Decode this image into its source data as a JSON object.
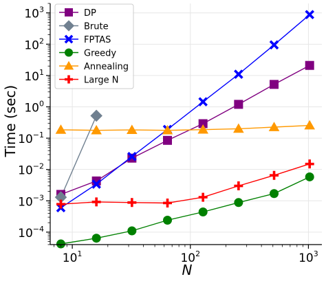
{
  "chart_data": {
    "type": "line",
    "xscale": "log",
    "yscale": "log",
    "xlim": [
      6.5,
      1300
    ],
    "ylim": [
      4e-05,
      2000
    ],
    "xlabel": "N",
    "ylabel": "Time (sec)",
    "grid": true,
    "legend_position": "upper-left",
    "xticks": [
      {
        "base": "10",
        "exp": "1",
        "value": 10
      },
      {
        "base": "10",
        "exp": "2",
        "value": 100
      },
      {
        "base": "10",
        "exp": "3",
        "value": 1000
      }
    ],
    "yticks": [
      {
        "base": "10",
        "exp": "−4",
        "value": 0.0001
      },
      {
        "base": "10",
        "exp": "−3",
        "value": 0.001
      },
      {
        "base": "10",
        "exp": "−2",
        "value": 0.01
      },
      {
        "base": "10",
        "exp": "−1",
        "value": 0.1
      },
      {
        "base": "10",
        "exp": "0",
        "value": 1
      },
      {
        "base": "10",
        "exp": "1",
        "value": 10
      },
      {
        "base": "10",
        "exp": "2",
        "value": 100
      },
      {
        "base": "10",
        "exp": "3",
        "value": 1000
      }
    ],
    "series": [
      {
        "name": "DP",
        "color": "#800080",
        "marker": "square",
        "x": [
          8,
          16,
          32,
          64,
          128,
          256,
          512,
          1024
        ],
        "y": [
          0.0016,
          0.0043,
          0.023,
          0.085,
          0.29,
          1.2,
          5.2,
          21
        ]
      },
      {
        "name": "Brute",
        "color": "#708090",
        "marker": "diamond",
        "x": [
          8,
          16
        ],
        "y": [
          0.0013,
          0.52
        ]
      },
      {
        "name": "FPTAS",
        "color": "#0000ff",
        "marker": "x",
        "x": [
          8,
          16,
          32,
          64,
          128,
          256,
          512,
          1024
        ],
        "y": [
          0.0006,
          0.0034,
          0.026,
          0.19,
          1.45,
          11,
          95,
          880
        ]
      },
      {
        "name": "Greedy",
        "color": "#008000",
        "marker": "circle",
        "x": [
          8,
          16,
          32,
          64,
          128,
          256,
          512,
          1024
        ],
        "y": [
          4.2e-05,
          6.4e-05,
          0.00011,
          0.00024,
          0.00044,
          0.00088,
          0.0017,
          0.0058
        ]
      },
      {
        "name": "Annealing",
        "color": "#ff9900",
        "marker": "triangle",
        "x": [
          8,
          16,
          32,
          64,
          128,
          256,
          512,
          1024
        ],
        "y": [
          0.185,
          0.178,
          0.183,
          0.178,
          0.187,
          0.2,
          0.225,
          0.255
        ]
      },
      {
        "name": "Large N",
        "color": "#ff0000",
        "marker": "plus",
        "x": [
          8,
          16,
          32,
          64,
          128,
          256,
          512,
          1024
        ],
        "y": [
          0.00078,
          0.00092,
          0.00088,
          0.00085,
          0.0013,
          0.003,
          0.0065,
          0.015
        ]
      }
    ]
  }
}
